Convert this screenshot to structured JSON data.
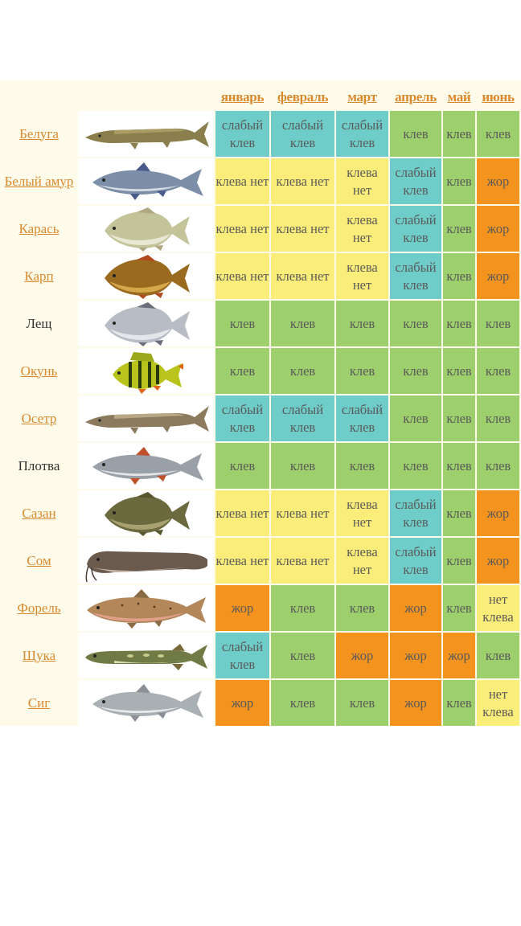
{
  "months": [
    "январь",
    "февраль",
    "март",
    "апрель",
    "май",
    "июнь"
  ],
  "colors": {
    "weak": "#6fcdc9",
    "none": "#fbed79",
    "bite": "#9dcf6c",
    "zhor": "#f4941f",
    "link": "#d98a2e",
    "panel": "#fffbea"
  },
  "labels": {
    "weak": "слабый клев",
    "none": "клева нет",
    "bite": "клев",
    "zhor": "жор",
    "none_alt": "нет клева"
  },
  "fish": [
    {
      "name": "Белуга",
      "link": true,
      "icon": "beluga-fish-icon",
      "months": [
        "weak",
        "weak",
        "weak",
        "bite",
        "bite",
        "bite"
      ]
    },
    {
      "name": "Белый амур",
      "link": true,
      "icon": "grass-carp-icon",
      "months": [
        "none",
        "none",
        "none",
        "weak",
        "bite",
        "zhor"
      ]
    },
    {
      "name": "Карась",
      "link": true,
      "icon": "crucian-carp-icon",
      "months": [
        "none",
        "none",
        "none",
        "weak",
        "bite",
        "zhor"
      ]
    },
    {
      "name": "Карп",
      "link": true,
      "icon": "carp-icon",
      "months": [
        "none",
        "none",
        "none",
        "weak",
        "bite",
        "zhor"
      ]
    },
    {
      "name": "Лещ",
      "link": false,
      "icon": "bream-icon",
      "months": [
        "bite",
        "bite",
        "bite",
        "bite",
        "bite",
        "bite"
      ]
    },
    {
      "name": "Окунь",
      "link": true,
      "icon": "perch-icon",
      "months": [
        "bite",
        "bite",
        "bite",
        "bite",
        "bite",
        "bite"
      ]
    },
    {
      "name": "Осетр",
      "link": true,
      "icon": "sturgeon-icon",
      "months": [
        "weak",
        "weak",
        "weak",
        "bite",
        "bite",
        "bite"
      ]
    },
    {
      "name": "Плотва",
      "link": false,
      "icon": "roach-icon",
      "months": [
        "bite",
        "bite",
        "bite",
        "bite",
        "bite",
        "bite"
      ]
    },
    {
      "name": "Сазан",
      "link": true,
      "icon": "wild-carp-icon",
      "months": [
        "none",
        "none",
        "none",
        "weak",
        "bite",
        "zhor"
      ]
    },
    {
      "name": "Сом",
      "link": true,
      "icon": "catfish-icon",
      "months": [
        "none",
        "none",
        "none",
        "weak",
        "bite",
        "zhor"
      ]
    },
    {
      "name": "Форель",
      "link": true,
      "icon": "trout-icon",
      "months": [
        "zhor",
        "bite",
        "bite",
        "zhor",
        "bite",
        "none_alt"
      ]
    },
    {
      "name": "Щука",
      "link": true,
      "icon": "pike-icon",
      "months": [
        "weak",
        "bite",
        "zhor",
        "zhor",
        "zhor",
        "bite"
      ]
    },
    {
      "name": "Сиг",
      "link": true,
      "icon": "whitefish-icon",
      "months": [
        "zhor",
        "bite",
        "bite",
        "zhor",
        "bite",
        "none_alt"
      ]
    }
  ]
}
